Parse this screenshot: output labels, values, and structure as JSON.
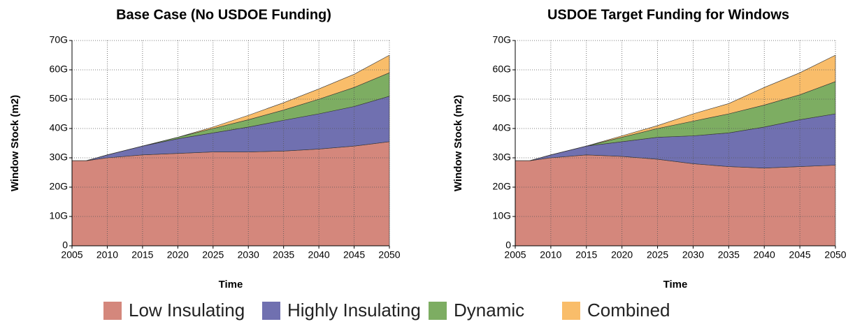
{
  "chart_data": [
    {
      "type": "stacked-area",
      "title": "Base Case (No USDOE Funding)",
      "x_label": "Time",
      "y_label": "Window Stock (m2)",
      "x": [
        2005,
        2007,
        2010,
        2015,
        2020,
        2025,
        2030,
        2035,
        2040,
        2045,
        2050
      ],
      "xlim": [
        2005,
        2050
      ],
      "xticks": [
        2005,
        2010,
        2015,
        2020,
        2025,
        2030,
        2035,
        2040,
        2045,
        2050
      ],
      "ylim": [
        0,
        70
      ],
      "yticks": [
        0,
        {
          "value": 10,
          "label": "10G"
        },
        {
          "value": 20,
          "label": "20G"
        },
        {
          "value": 30,
          "label": "30G"
        },
        {
          "value": 40,
          "label": "40G"
        },
        {
          "value": 50,
          "label": "50G"
        },
        {
          "value": 60,
          "label": "60G"
        },
        {
          "value": 70,
          "label": "70G"
        }
      ],
      "grid": true,
      "series": [
        {
          "name": "Low Insulating",
          "color": "#d4877c",
          "values": [
            29,
            29,
            30,
            31,
            31.5,
            32,
            32,
            32.3,
            33,
            34,
            35.5
          ]
        },
        {
          "name": "Highly Insulating",
          "color": "#7070b0",
          "values": [
            0,
            0,
            1,
            3,
            5,
            6.5,
            8.5,
            10.5,
            12,
            13.5,
            15.5
          ]
        },
        {
          "name": "Dynamic",
          "color": "#7dad62",
          "values": [
            0,
            0,
            0,
            0,
            0.5,
            1.5,
            2.5,
            3.5,
            5,
            6.5,
            8
          ]
        },
        {
          "name": "Combined",
          "color": "#f9bd6a",
          "values": [
            0,
            0,
            0,
            0,
            0,
            0.5,
            1.5,
            2.5,
            3.5,
            4.5,
            6
          ]
        }
      ]
    },
    {
      "type": "stacked-area",
      "title": "USDOE Target Funding for Windows",
      "x_label": "Time",
      "y_label": "Window Stock (m2)",
      "x": [
        2005,
        2007,
        2010,
        2015,
        2020,
        2025,
        2030,
        2035,
        2040,
        2045,
        2050
      ],
      "xlim": [
        2005,
        2050
      ],
      "xticks": [
        2005,
        2010,
        2015,
        2020,
        2025,
        2030,
        2035,
        2040,
        2045,
        2050
      ],
      "ylim": [
        0,
        70
      ],
      "yticks": [
        0,
        {
          "value": 10,
          "label": "10G"
        },
        {
          "value": 20,
          "label": "20G"
        },
        {
          "value": 30,
          "label": "30G"
        },
        {
          "value": 40,
          "label": "40G"
        },
        {
          "value": 50,
          "label": "50G"
        },
        {
          "value": 60,
          "label": "60G"
        },
        {
          "value": 70,
          "label": "70G"
        }
      ],
      "grid": true,
      "series": [
        {
          "name": "Low Insulating",
          "color": "#d4877c",
          "values": [
            29,
            29,
            30,
            31,
            30.5,
            29.5,
            28,
            27,
            26.5,
            27,
            27.5
          ]
        },
        {
          "name": "Highly Insulating",
          "color": "#7070b0",
          "values": [
            0,
            0,
            1,
            3,
            5,
            7.5,
            9.5,
            11.5,
            14,
            16,
            17.5
          ]
        },
        {
          "name": "Dynamic",
          "color": "#7dad62",
          "values": [
            0,
            0,
            0,
            0,
            1.5,
            3,
            5,
            6.5,
            7.5,
            8.5,
            11
          ]
        },
        {
          "name": "Combined",
          "color": "#f9bd6a",
          "values": [
            0,
            0,
            0,
            0,
            0.5,
            1,
            2.5,
            3.5,
            6,
            7.5,
            9
          ]
        }
      ]
    }
  ]
}
